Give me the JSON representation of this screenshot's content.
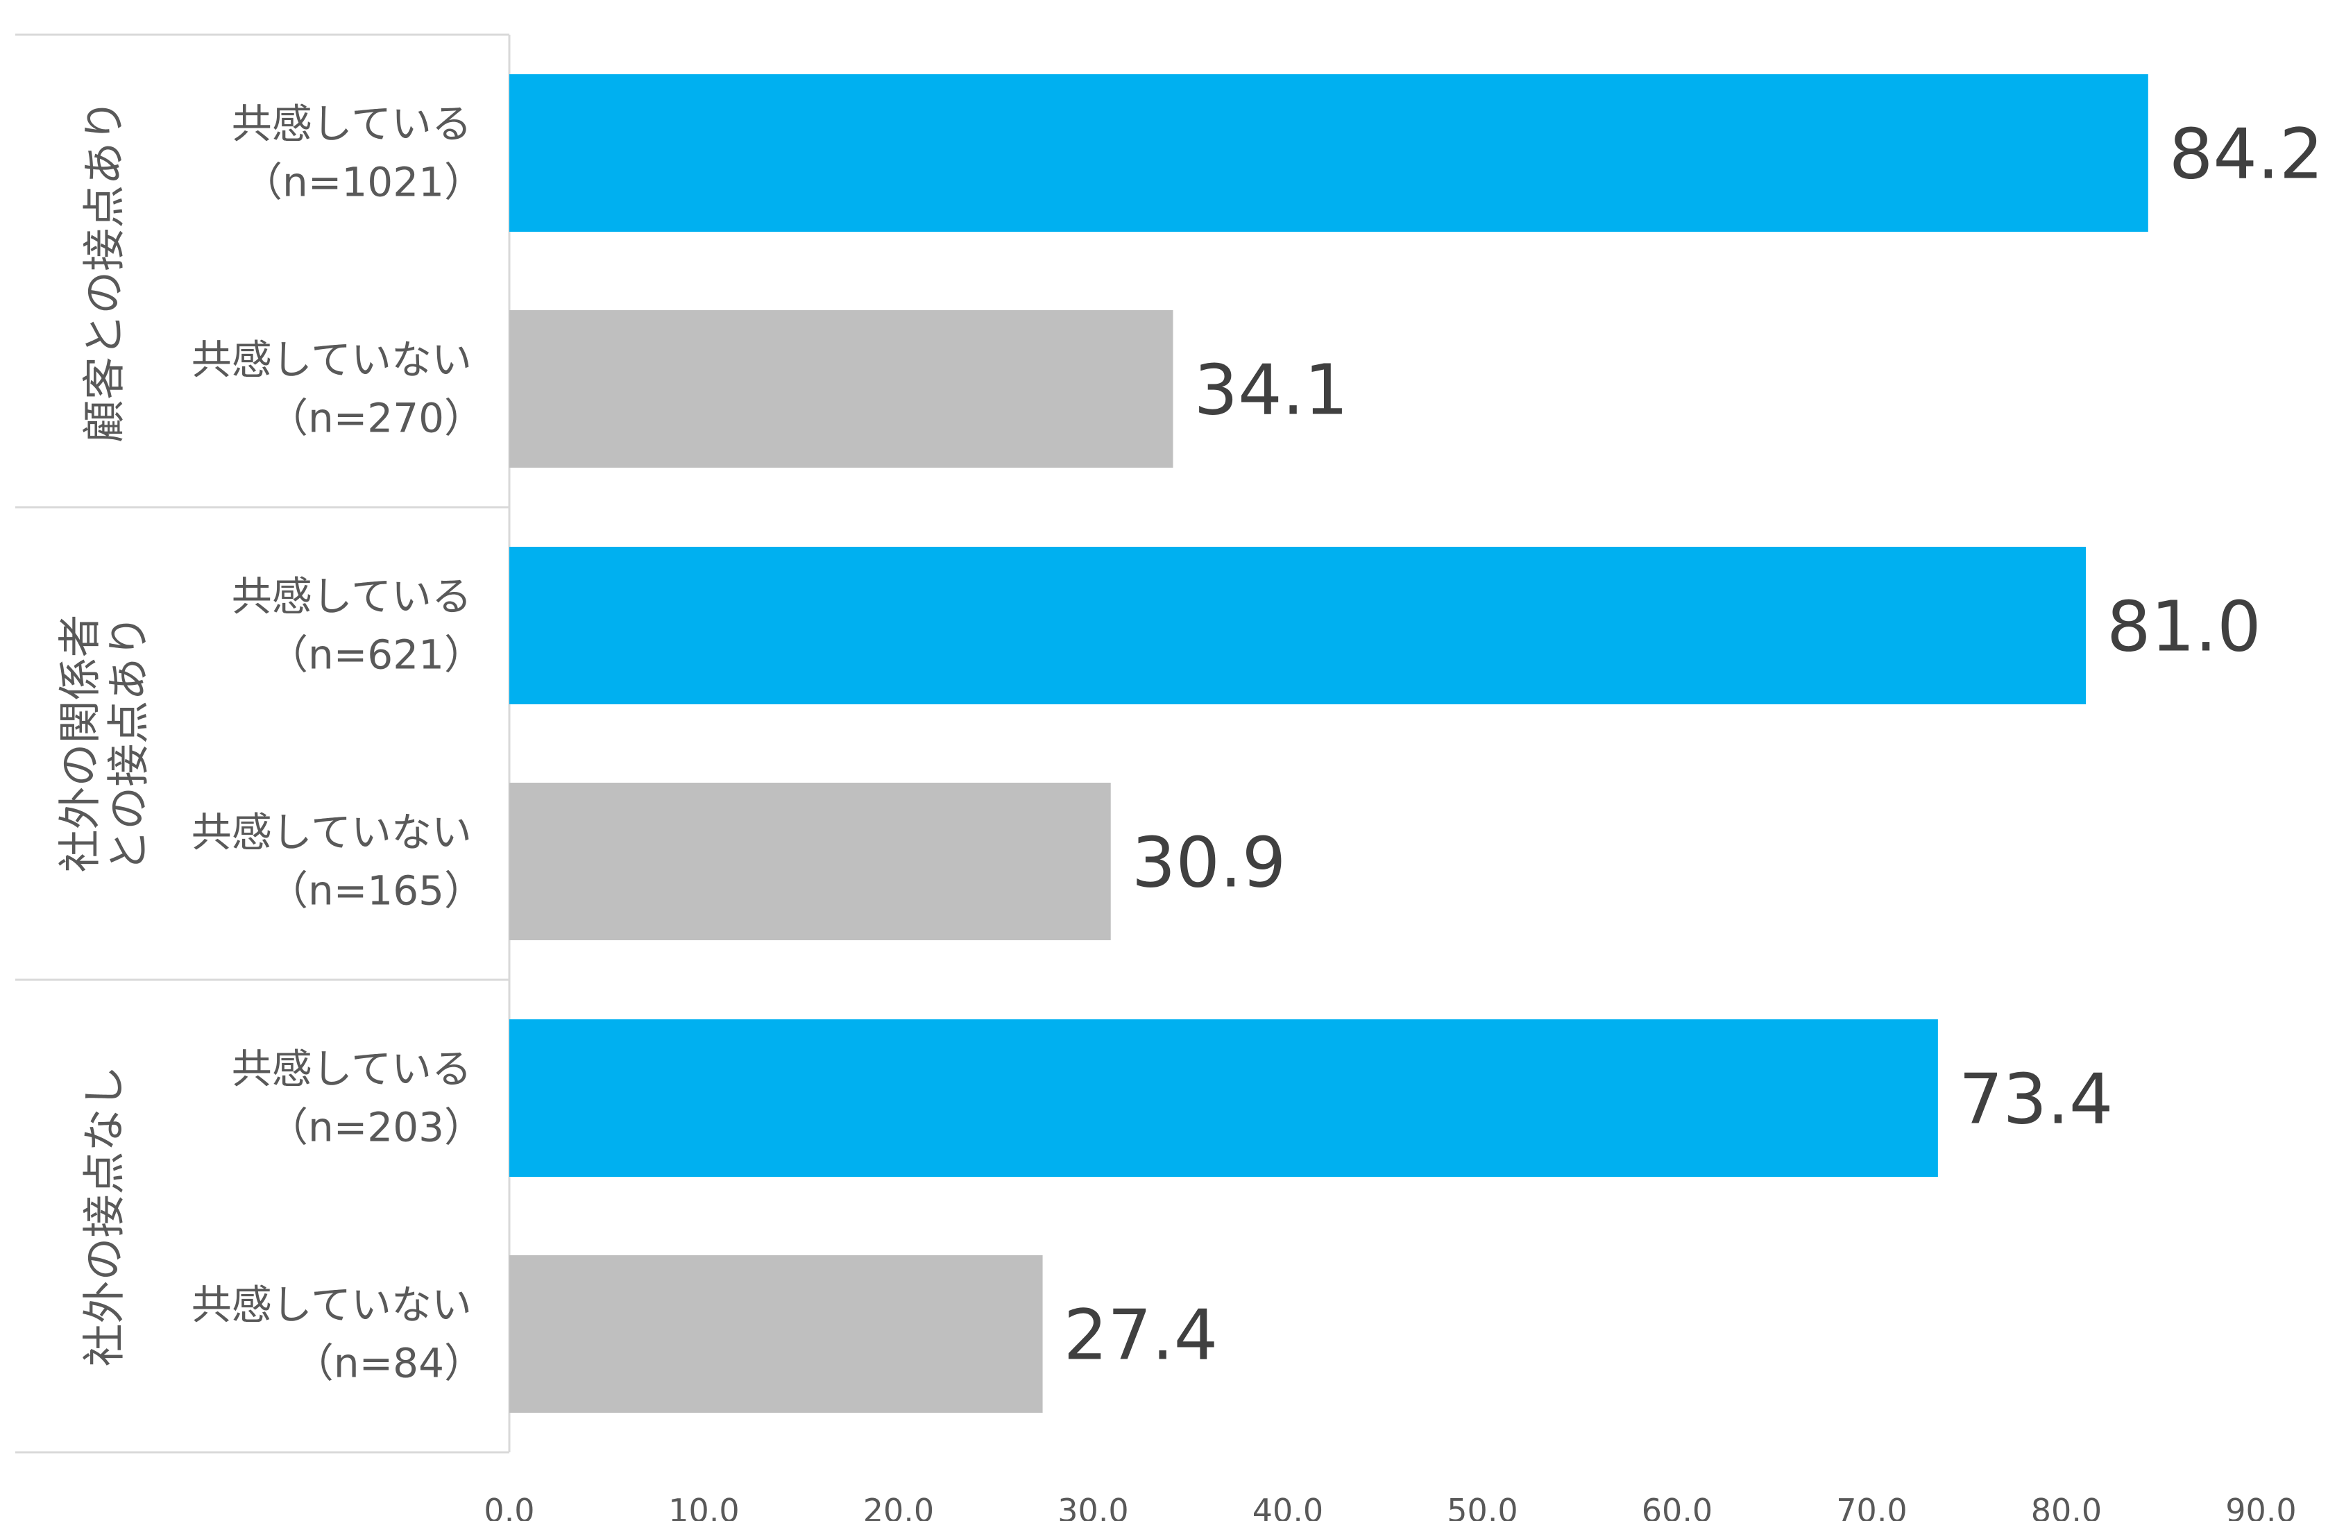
{
  "chart_data": {
    "type": "bar",
    "orientation": "horizontal",
    "title": "",
    "xlabel": "",
    "ylabel": "",
    "xlim": [
      0,
      90
    ],
    "x_ticks": [
      "0.0",
      "10.0",
      "20.0",
      "30.0",
      "40.0",
      "50.0",
      "60.0",
      "70.0",
      "80.0",
      "90.0"
    ],
    "grid": false,
    "legend": "none",
    "colors": {
      "agree": "#00b0f0",
      "disagree": "#bfbfbf"
    },
    "groups": [
      {
        "label_lines": [
          "顧客との接点あり"
        ],
        "bars": [
          {
            "label": "共感している",
            "n_label": "（n=1021）",
            "value": 84.2,
            "value_label": "84.2",
            "kind": "agree"
          },
          {
            "label": "共感していない",
            "n_label": "（n=270）",
            "value": 34.1,
            "value_label": "34.1",
            "kind": "disagree"
          }
        ]
      },
      {
        "label_lines": [
          "社外の関係者",
          "との接点あり"
        ],
        "bars": [
          {
            "label": "共感している",
            "n_label": "（n=621）",
            "value": 81.0,
            "value_label": "81.0",
            "kind": "agree"
          },
          {
            "label": "共感していない",
            "n_label": "（n=165）",
            "value": 30.9,
            "value_label": "30.9",
            "kind": "disagree"
          }
        ]
      },
      {
        "label_lines": [
          "社外の接点なし"
        ],
        "bars": [
          {
            "label": "共感している",
            "n_label": "（n=203）",
            "value": 73.4,
            "value_label": "73.4",
            "kind": "agree"
          },
          {
            "label": "共感していない",
            "n_label": "（n=84）",
            "value": 27.4,
            "value_label": "27.4",
            "kind": "disagree"
          }
        ]
      }
    ]
  }
}
